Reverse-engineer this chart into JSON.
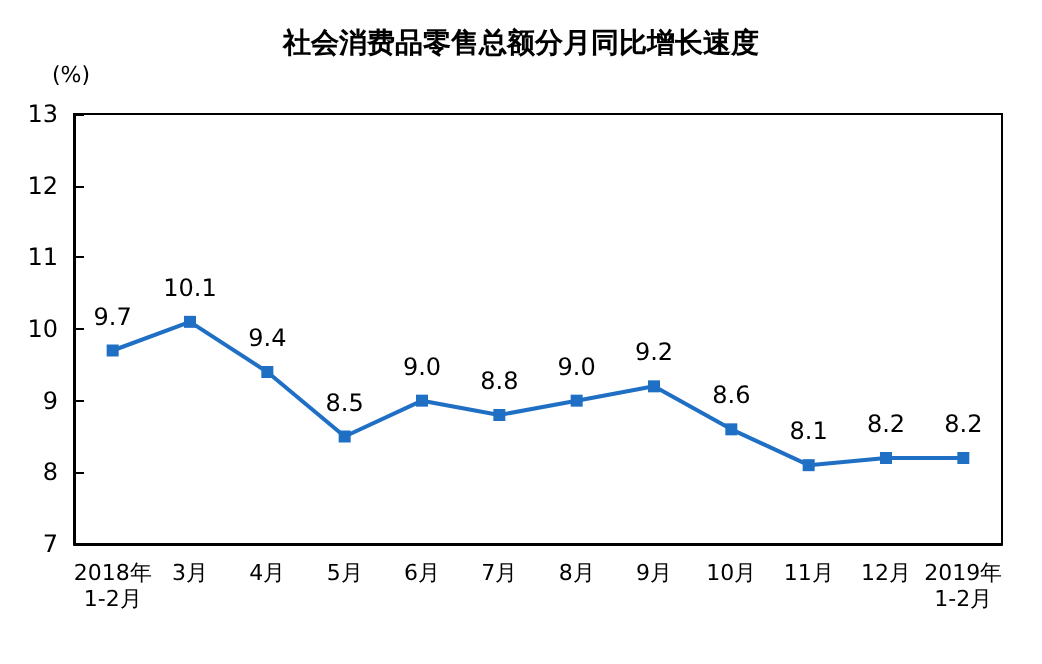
{
  "chart_data": {
    "type": "line",
    "title": "社会消费品零售总额分月同比增长速度",
    "ylabel": "(%)",
    "categories": [
      "2018年\n1-2月",
      "3月",
      "4月",
      "5月",
      "6月",
      "7月",
      "8月",
      "9月",
      "10月",
      "11月",
      "12月",
      "2019年\n1-2月"
    ],
    "series": [
      {
        "color": "#1f6fc5",
        "values": [
          9.7,
          10.1,
          9.4,
          8.5,
          9.0,
          8.8,
          9.0,
          9.2,
          8.6,
          8.1,
          8.2,
          8.2
        ],
        "value_labels": [
          "9.7",
          "10.1",
          "9.4",
          "8.5",
          "9.0",
          "8.8",
          "9.0",
          "9.2",
          "8.6",
          "8.1",
          "8.2",
          "8.2"
        ]
      }
    ],
    "ylim": [
      7,
      13
    ],
    "yticks": [
      7,
      8,
      9,
      10,
      11,
      12,
      13
    ],
    "grid": false,
    "marker": "square",
    "line_style": "solid"
  }
}
